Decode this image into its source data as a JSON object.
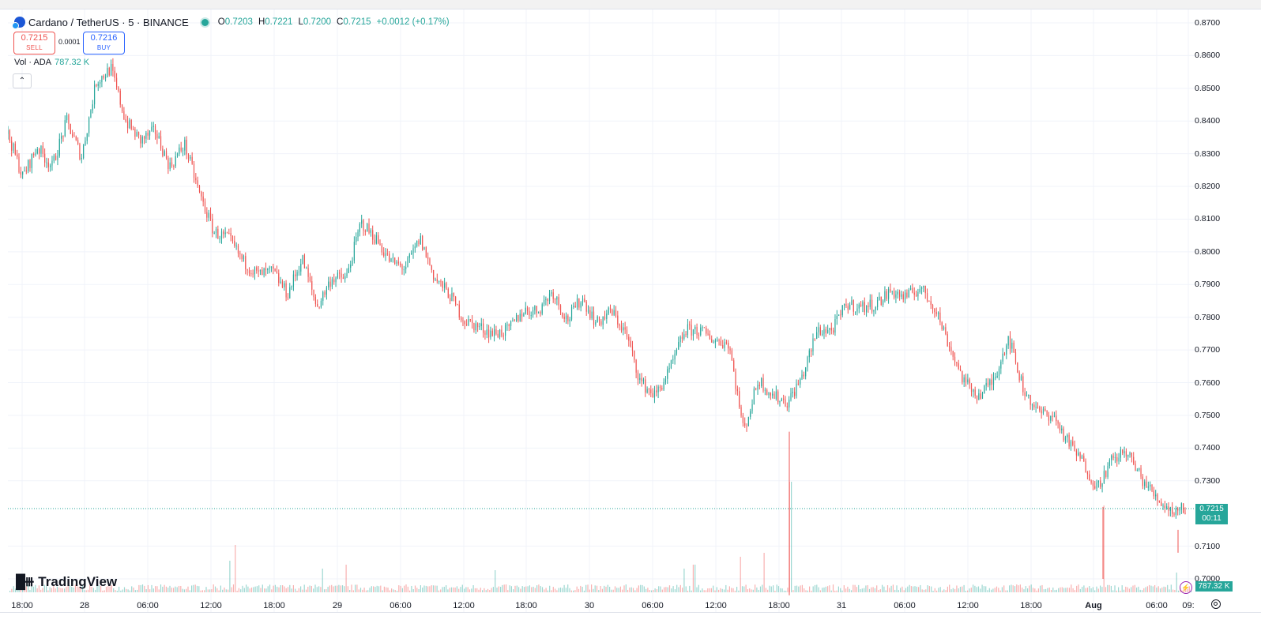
{
  "legend": {
    "symbol": "Cardano / TetherUS · 5 · BINANCE",
    "open_label": "O",
    "open": "0.7203",
    "high_label": "H",
    "high": "0.7221",
    "low_label": "L",
    "low": "0.7200",
    "close_label": "C",
    "close": "0.7215",
    "change": "+0.0012 (+0.17%)"
  },
  "trade": {
    "sell_price": "0.7215",
    "sell_label": "SELL",
    "spread": "0.0001",
    "buy_price": "0.7216",
    "buy_label": "BUY"
  },
  "volume_legend": {
    "label": "Vol · ADA",
    "value": "787.32 K"
  },
  "price_axis_labels": [
    "0.8700",
    "0.8600",
    "0.8500",
    "0.8400",
    "0.8300",
    "0.8200",
    "0.8100",
    "0.8000",
    "0.7900",
    "0.7800",
    "0.7700",
    "0.7600",
    "0.7500",
    "0.7400",
    "0.7300",
    "0.7100",
    "0.7000"
  ],
  "last_price": {
    "price": "0.7215",
    "countdown": "00:11"
  },
  "volume_badge": "787.32 K",
  "time_axis_labels": [
    "18:00",
    "28",
    "06:00",
    "12:00",
    "18:00",
    "29",
    "06:00",
    "12:00",
    "18:00",
    "30",
    "06:00",
    "12:00",
    "18:00",
    "31",
    "06:00",
    "12:00",
    "18:00",
    "Aug",
    "06:00",
    "09:"
  ],
  "brand": "TradingView",
  "colors": {
    "up": "#26a69a",
    "down": "#ef5350",
    "grid": "#f0f3fa",
    "accent": "#2962ff"
  },
  "chart_data": {
    "type": "candlestick",
    "interval": "5",
    "ylim": [
      0.695,
      0.872
    ],
    "grid": true,
    "x": [
      "27 18:00",
      "28",
      "28 06:00",
      "28 12:00",
      "28 18:00",
      "29",
      "29 06:00",
      "29 12:00",
      "29 18:00",
      "30",
      "30 06:00",
      "30 12:00",
      "30 18:00",
      "31",
      "31 06:00",
      "31 12:00",
      "31 18:00",
      "Aug",
      "Aug 06:00",
      "Aug 09:00"
    ],
    "price_path": [
      0.836,
      0.823,
      0.832,
      0.826,
      0.84,
      0.829,
      0.852,
      0.856,
      0.84,
      0.834,
      0.837,
      0.826,
      0.833,
      0.818,
      0.806,
      0.804,
      0.797,
      0.793,
      0.794,
      0.787,
      0.798,
      0.783,
      0.792,
      0.792,
      0.809,
      0.804,
      0.797,
      0.795,
      0.804,
      0.792,
      0.787,
      0.779,
      0.777,
      0.775,
      0.776,
      0.782,
      0.782,
      0.788,
      0.779,
      0.786,
      0.778,
      0.782,
      0.775,
      0.76,
      0.756,
      0.764,
      0.776,
      0.776,
      0.773,
      0.772,
      0.745,
      0.761,
      0.756,
      0.754,
      0.762,
      0.776,
      0.776,
      0.784,
      0.783,
      0.784,
      0.788,
      0.786,
      0.789,
      0.783,
      0.771,
      0.76,
      0.756,
      0.761,
      0.774,
      0.758,
      0.751,
      0.75,
      0.742,
      0.736,
      0.728,
      0.736,
      0.739,
      0.731,
      0.725,
      0.721,
      0.7215
    ],
    "volume_scale": "0–~900K"
  }
}
